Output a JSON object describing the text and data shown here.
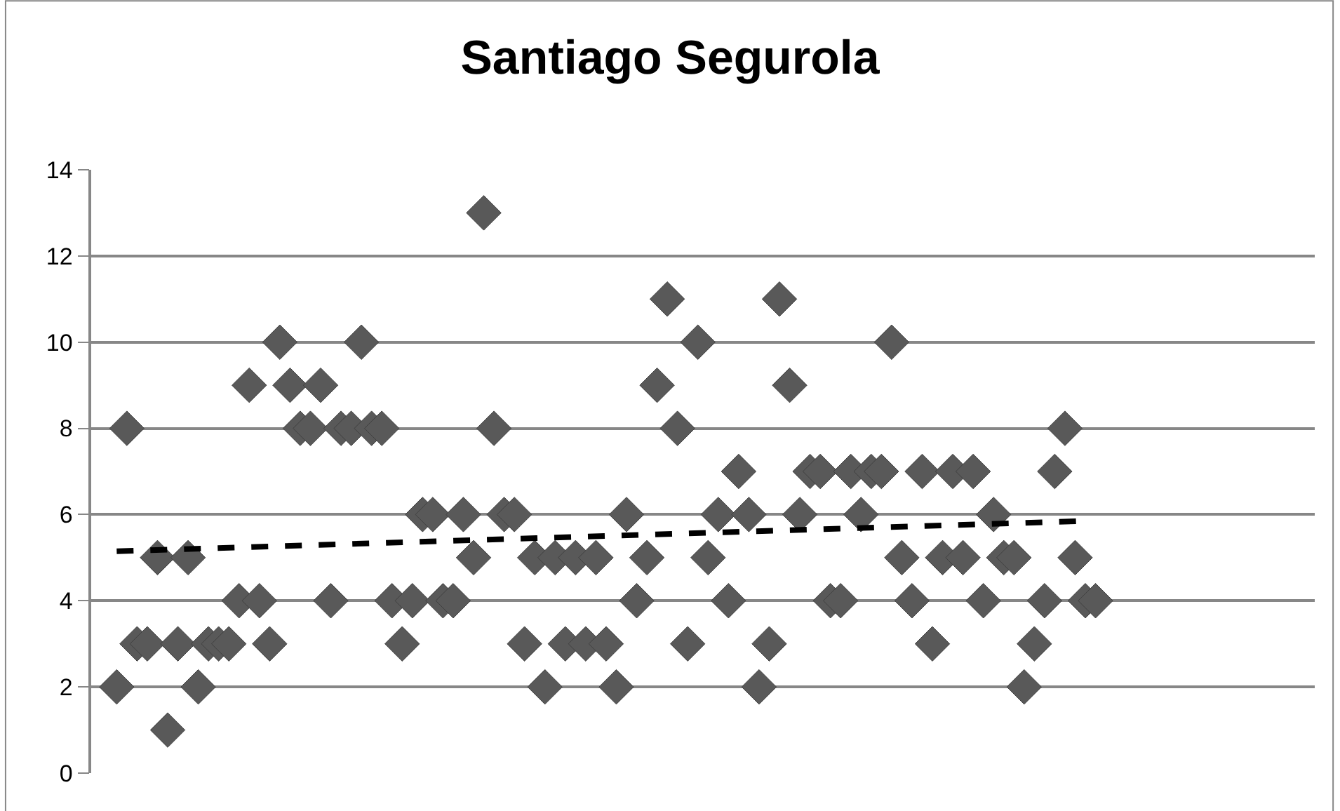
{
  "chart_data": {
    "type": "scatter",
    "title": "Santiago Segurola",
    "categories": [
      null,
      null,
      null,
      null,
      null,
      null,
      null,
      null,
      null,
      null,
      null,
      null,
      null,
      null,
      null,
      null,
      null,
      null,
      null,
      null,
      null,
      null,
      null,
      null,
      null,
      null,
      null,
      null,
      null,
      null,
      null,
      null,
      null,
      null,
      null,
      null,
      null,
      null,
      null,
      null,
      null,
      null,
      null,
      null,
      null,
      null,
      null,
      null,
      null,
      null,
      null,
      null,
      null,
      null,
      null,
      null,
      null,
      null,
      null,
      null,
      null,
      null,
      null,
      null,
      null,
      null,
      null,
      null,
      null,
      null,
      null,
      null,
      null,
      null,
      null,
      null,
      null,
      null,
      null,
      null,
      null,
      null,
      null,
      null,
      null,
      null,
      null,
      null,
      null,
      null,
      null,
      null,
      null,
      null,
      null,
      null,
      null,
      null,
      null,
      null,
      null,
      null,
      null,
      null,
      null,
      null,
      null,
      null,
      null,
      null,
      null,
      null,
      null,
      null,
      null,
      null,
      null,
      null,
      null,
      null
    ],
    "series": [
      {
        "marker": "diamond",
        "color": "#595959",
        "values": [
          null,
          null,
          2,
          8,
          3,
          3,
          5,
          1,
          3,
          5,
          2,
          3,
          3,
          3,
          4,
          9,
          4,
          3,
          10,
          9,
          8,
          8,
          9,
          4,
          8,
          8,
          10,
          8,
          8,
          4,
          3,
          4,
          6,
          6,
          4,
          4,
          6,
          5,
          13,
          8,
          6,
          6,
          3,
          5,
          2,
          5,
          3,
          5,
          3,
          5,
          3,
          2,
          6,
          4,
          5,
          9,
          11,
          8,
          3,
          10,
          5,
          6,
          4,
          7,
          6,
          2,
          3,
          11,
          9,
          6,
          7,
          7,
          4,
          4,
          7,
          6,
          7,
          7,
          10,
          5,
          4,
          7,
          3,
          5,
          7,
          5,
          7,
          4,
          6,
          5,
          5,
          2,
          3,
          4,
          7,
          8,
          5,
          4,
          4,
          null,
          null,
          null,
          null,
          null,
          null,
          null,
          null,
          null,
          null,
          null,
          null,
          null,
          null,
          null,
          null,
          null,
          null,
          null,
          null,
          null
        ]
      },
      {
        "type": "line",
        "marker": "none",
        "line_style": "dashed",
        "color": "#000000",
        "values": [
          null,
          null,
          5.15,
          null,
          null,
          null,
          null,
          null,
          null,
          null,
          null,
          null,
          null,
          null,
          null,
          null,
          null,
          null,
          null,
          null,
          null,
          null,
          null,
          null,
          null,
          null,
          null,
          null,
          null,
          null,
          null,
          null,
          null,
          null,
          null,
          null,
          null,
          null,
          null,
          null,
          null,
          null,
          null,
          null,
          null,
          null,
          null,
          null,
          null,
          null,
          null,
          null,
          null,
          null,
          null,
          null,
          null,
          null,
          null,
          null,
          null,
          null,
          null,
          null,
          null,
          null,
          null,
          null,
          null,
          null,
          null,
          null,
          null,
          null,
          null,
          null,
          null,
          null,
          null,
          null,
          null,
          null,
          null,
          null,
          null,
          null,
          null,
          null,
          null,
          null,
          null,
          null,
          null,
          null,
          null,
          null,
          null,
          5.85,
          null,
          null,
          null,
          null,
          null,
          null,
          null,
          null,
          null,
          null,
          null,
          null,
          null,
          null,
          null,
          null,
          null,
          null,
          null,
          null,
          null,
          null
        ]
      }
    ],
    "ylim": [
      0,
      14
    ],
    "yticks": [
      0,
      2,
      4,
      6,
      8,
      10,
      12,
      14
    ],
    "grid": "y",
    "tick_labels": "y"
  }
}
